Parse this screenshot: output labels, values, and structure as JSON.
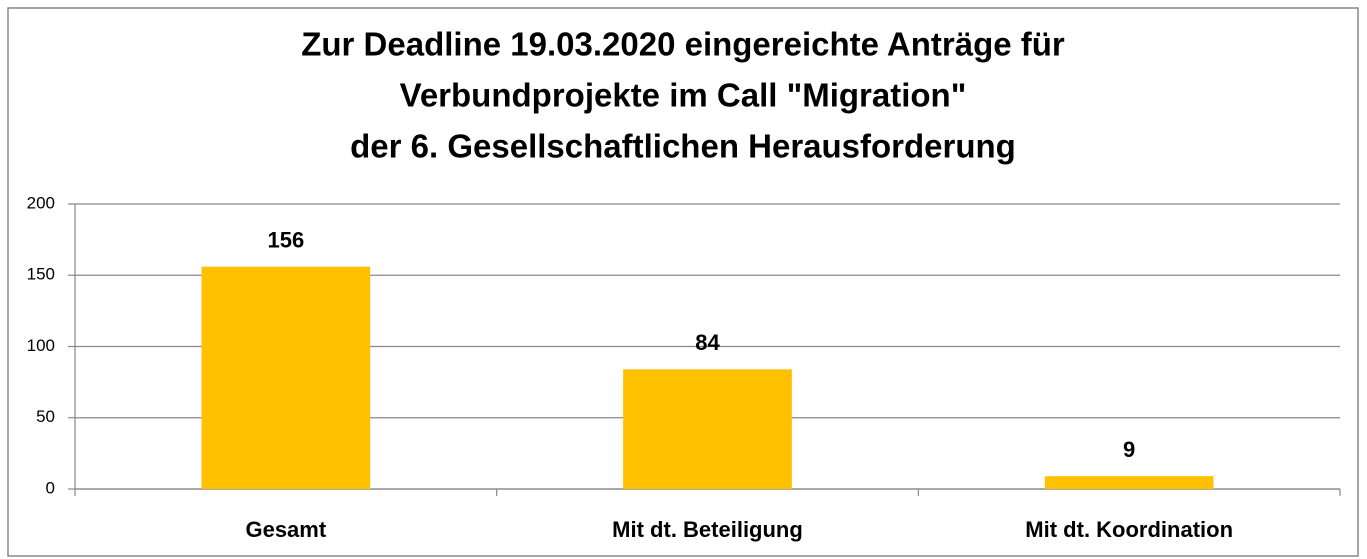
{
  "chart_data": {
    "type": "bar",
    "title": [
      "Zur Deadline 19.03.2020 eingereichte Anträge für",
      "Verbundprojekte im Call \"Migration\"",
      "der 6. Gesellschaftlichen Herausforderung"
    ],
    "categories": [
      "Gesamt",
      "Mit dt. Beteiligung",
      "Mit dt. Koordination"
    ],
    "values": [
      156,
      84,
      9
    ],
    "color": "#ffc000",
    "ylim": [
      0,
      200
    ],
    "yticks": [
      0,
      50,
      100,
      150,
      200
    ],
    "grid": true
  }
}
